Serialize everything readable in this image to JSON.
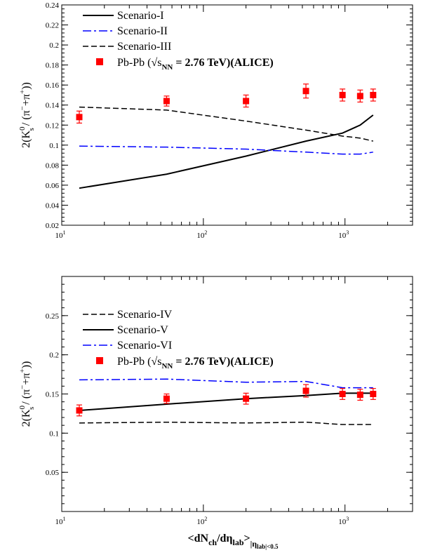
{
  "chart_data": [
    {
      "type": "line",
      "xscale": "log",
      "xlim": [
        10,
        3000
      ],
      "ylim": [
        0.02,
        0.24
      ],
      "yticks": [
        0.02,
        0.04,
        0.06,
        0.08,
        0.1,
        0.12,
        0.14,
        0.16,
        0.18,
        0.2,
        0.22,
        0.24
      ],
      "ytick_labels": [
        "0.02",
        "0.04",
        "0.06",
        "0.08",
        "0.1",
        "0.12",
        "0.14",
        "0.16",
        "0.18",
        "0.2",
        "0.22",
        "0.24"
      ],
      "xticks": [
        10,
        100,
        1000
      ],
      "xtick_bases": [
        "10",
        "10",
        "10"
      ],
      "xtick_exps": [
        "1",
        "2",
        "3"
      ],
      "ylabel": "2(K_s^0 / (π⁻ + π⁺))",
      "ylabel_parts": {
        "prefix": "2(K",
        "sup": "0",
        "sub": "s",
        "mid": "/ (π",
        "sup2": "−",
        "mid2": "+π",
        "sup3": "+",
        "suffix": "))"
      },
      "xlabel": "",
      "legend_position": "top-left",
      "series": [
        {
          "name": "Scenario-I",
          "style": "solid",
          "color": "#000000",
          "x": [
            13.3,
            55,
            200,
            530,
            960,
            1280,
            1580
          ],
          "y": [
            0.057,
            0.071,
            0.089,
            0.104,
            0.112,
            0.12,
            0.13
          ]
        },
        {
          "name": "Scenario-II",
          "style": "dashdot",
          "color": "#0000ff",
          "x": [
            13.3,
            55,
            200,
            530,
            960,
            1280,
            1580
          ],
          "y": [
            0.099,
            0.098,
            0.096,
            0.093,
            0.091,
            0.091,
            0.093
          ]
        },
        {
          "name": "Scenario-III",
          "style": "dashed",
          "color": "#000000",
          "x": [
            13.3,
            55,
            200,
            530,
            960,
            1280,
            1580
          ],
          "y": [
            0.138,
            0.135,
            0.124,
            0.115,
            0.109,
            0.107,
            0.104
          ]
        },
        {
          "name": "Pb-Pb",
          "legend_label": "Pb-Pb (√s",
          "legend_sub": "NN",
          "legend_tail": " = 2.76 TeV)(ALICE)",
          "style": "marker",
          "color": "#ff0000",
          "x": [
            13.3,
            55,
            200,
            530,
            960,
            1280,
            1580
          ],
          "y": [
            0.128,
            0.144,
            0.144,
            0.154,
            0.15,
            0.149,
            0.15
          ],
          "yerr": [
            0.006,
            0.005,
            0.006,
            0.007,
            0.006,
            0.006,
            0.006
          ]
        }
      ]
    },
    {
      "type": "line",
      "xscale": "log",
      "xlim": [
        10,
        3000
      ],
      "ylim": [
        0,
        0.3
      ],
      "yticks": [
        0.05,
        0.1,
        0.15,
        0.2,
        0.25
      ],
      "ytick_labels": [
        "0.05",
        "0.1",
        "0.15",
        "0.2",
        "0.25"
      ],
      "xticks": [
        10,
        100,
        1000
      ],
      "xtick_bases": [
        "10",
        "10",
        "10"
      ],
      "xtick_exps": [
        "1",
        "2",
        "3"
      ],
      "ylabel": "2(K_s^0 / (π⁻ + π⁺))",
      "ylabel_parts": {
        "prefix": "2(K",
        "sup": "0",
        "sub": "s",
        "mid": "/ (π",
        "sup2": "−",
        "mid2": "+π",
        "sup3": "+",
        "suffix": "))"
      },
      "xlabel": "<dN_ch/dη_lab>_|η_lab|<0.5",
      "xlabel_parts": {
        "prefix": "<dN",
        "sub1": "ch",
        "mid": "/dη",
        "sub2": "lab",
        "gt": ">",
        "sub3": "|η",
        "sub3b": "lab|<0.5"
      },
      "legend_position": "top-left",
      "series": [
        {
          "name": "Scenario-IV",
          "style": "dashed",
          "color": "#000000",
          "x": [
            13.3,
            55,
            200,
            530,
            960,
            1280,
            1580
          ],
          "y": [
            0.113,
            0.114,
            0.113,
            0.114,
            0.111,
            0.111,
            0.111
          ]
        },
        {
          "name": "Scenario-V",
          "style": "solid",
          "color": "#000000",
          "x": [
            13.3,
            55,
            200,
            530,
            960,
            1280,
            1580
          ],
          "y": [
            0.129,
            0.137,
            0.144,
            0.148,
            0.151,
            0.151,
            0.151
          ]
        },
        {
          "name": "Scenario-VI",
          "style": "dashdot",
          "color": "#0000ff",
          "x": [
            13.3,
            55,
            200,
            530,
            960,
            1280,
            1580
          ],
          "y": [
            0.168,
            0.169,
            0.165,
            0.166,
            0.158,
            0.158,
            0.158
          ]
        },
        {
          "name": "Pb-Pb",
          "legend_label": "Pb-Pb (√s",
          "legend_sub": "NN",
          "legend_tail": " = 2.76 TeV)(ALICE)",
          "style": "marker",
          "color": "#ff0000",
          "x": [
            13.3,
            55,
            200,
            530,
            960,
            1280,
            1580
          ],
          "y": [
            0.129,
            0.144,
            0.144,
            0.154,
            0.15,
            0.149,
            0.15
          ],
          "yerr": [
            0.007,
            0.006,
            0.007,
            0.008,
            0.007,
            0.007,
            0.007
          ]
        }
      ]
    }
  ]
}
